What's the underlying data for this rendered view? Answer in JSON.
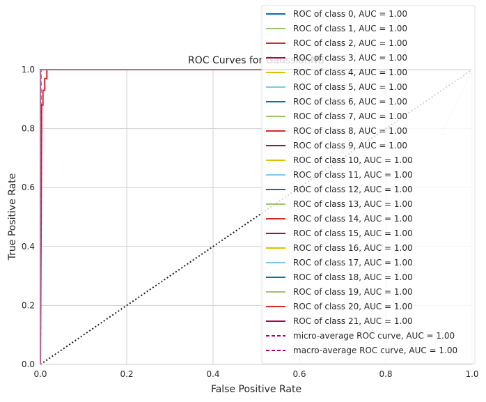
{
  "chart_data": {
    "type": "line",
    "title": "ROC Curves for GaussianNB",
    "xlabel": "False Positive Rate",
    "ylabel": "True Positive Rate",
    "xlim": [
      0,
      1
    ],
    "ylim": [
      0,
      1
    ],
    "xticks": [
      "0.0",
      "0.2",
      "0.4",
      "0.6",
      "0.8",
      "1.0"
    ],
    "yticks": [
      "0.0",
      "0.2",
      "0.4",
      "0.6",
      "0.8",
      "1.0"
    ],
    "grid": true,
    "legend_position": "upper-right",
    "series": [
      {
        "name": "ROC of class 0, AUC = 1.00",
        "color": "#0072B2",
        "style": "solid",
        "x": [
          0,
          0,
          1
        ],
        "y": [
          0,
          1,
          1
        ]
      },
      {
        "name": "ROC of class 1, AUC = 1.00",
        "color": "#9BC46B",
        "style": "solid",
        "x": [
          0,
          0,
          1
        ],
        "y": [
          0,
          1,
          1
        ]
      },
      {
        "name": "ROC of class 2, AUC = 1.00",
        "color": "#D62728",
        "style": "solid",
        "x": [
          0,
          0,
          1
        ],
        "y": [
          0,
          1,
          1
        ]
      },
      {
        "name": "ROC of class 3, AUC = 1.00",
        "color": "#B5005B",
        "style": "solid",
        "x": [
          0,
          0,
          1
        ],
        "y": [
          0,
          1,
          1
        ]
      },
      {
        "name": "ROC of class 4, AUC = 1.00",
        "color": "#D9C200",
        "style": "solid",
        "x": [
          0,
          0,
          1
        ],
        "y": [
          0,
          1,
          1
        ]
      },
      {
        "name": "ROC of class 5, AUC = 1.00",
        "color": "#7EC8E3",
        "style": "solid",
        "x": [
          0,
          0,
          1
        ],
        "y": [
          0,
          1,
          1
        ]
      },
      {
        "name": "ROC of class 6, AUC = 1.00",
        "color": "#0072B2",
        "style": "solid",
        "x": [
          0,
          0,
          1
        ],
        "y": [
          0,
          1,
          1
        ]
      },
      {
        "name": "ROC of class 7, AUC = 1.00",
        "color": "#9BC46B",
        "style": "solid",
        "x": [
          0,
          0,
          1
        ],
        "y": [
          0,
          1,
          1
        ]
      },
      {
        "name": "ROC of class 8, AUC = 1.00",
        "color": "#D62728",
        "style": "solid",
        "x": [
          0,
          0,
          1
        ],
        "y": [
          0,
          1,
          1
        ]
      },
      {
        "name": "ROC of class 9, AUC = 1.00",
        "color": "#B5005B",
        "style": "solid",
        "x": [
          0,
          0,
          1
        ],
        "y": [
          0,
          1,
          1
        ]
      },
      {
        "name": "ROC of class 10, AUC = 1.00",
        "color": "#D9C200",
        "style": "solid",
        "x": [
          0,
          0,
          1
        ],
        "y": [
          0,
          1,
          1
        ]
      },
      {
        "name": "ROC of class 11, AUC = 1.00",
        "color": "#7EC8E3",
        "style": "solid",
        "x": [
          0,
          0,
          1
        ],
        "y": [
          0,
          1,
          1
        ]
      },
      {
        "name": "ROC of class 12, AUC = 1.00",
        "color": "#0072B2",
        "style": "solid",
        "x": [
          0,
          0,
          1
        ],
        "y": [
          0,
          1,
          1
        ]
      },
      {
        "name": "ROC of class 13, AUC = 1.00",
        "color": "#9BC46B",
        "style": "solid",
        "x": [
          0,
          0,
          1
        ],
        "y": [
          0,
          1,
          1
        ]
      },
      {
        "name": "ROC of class 14, AUC = 1.00",
        "color": "#D62728",
        "style": "solid",
        "x": [
          0,
          0,
          1
        ],
        "y": [
          0,
          1,
          1
        ]
      },
      {
        "name": "ROC of class 15, AUC = 1.00",
        "color": "#B5005B",
        "style": "solid",
        "x": [
          0,
          0,
          1
        ],
        "y": [
          0,
          1,
          1
        ]
      },
      {
        "name": "ROC of class 16, AUC = 1.00",
        "color": "#D9C200",
        "style": "solid",
        "x": [
          0,
          0,
          1
        ],
        "y": [
          0,
          1,
          1
        ]
      },
      {
        "name": "ROC of class 17, AUC = 1.00",
        "color": "#7EC8E3",
        "style": "solid",
        "x": [
          0,
          0,
          1
        ],
        "y": [
          0,
          1,
          1
        ]
      },
      {
        "name": "ROC of class 18, AUC = 1.00",
        "color": "#0072B2",
        "style": "solid",
        "x": [
          0,
          0,
          1
        ],
        "y": [
          0,
          1,
          1
        ]
      },
      {
        "name": "ROC of class 19, AUC = 1.00",
        "color": "#9BC46B",
        "style": "solid",
        "x": [
          0,
          0,
          1
        ],
        "y": [
          0,
          1,
          1
        ]
      },
      {
        "name": "ROC of class 20, AUC = 1.00",
        "color": "#D62728",
        "style": "solid",
        "x": [
          0,
          0.003,
          0.003,
          0.006,
          0.006,
          0.01,
          0.01,
          0.015,
          0.015,
          1
        ],
        "y": [
          0,
          0.84,
          0.88,
          0.88,
          0.93,
          0.93,
          0.97,
          0.97,
          1,
          1
        ]
      },
      {
        "name": "ROC of class 21, AUC = 1.00",
        "color": "#B5005B",
        "style": "solid",
        "x": [
          0,
          0,
          1
        ],
        "y": [
          0,
          1,
          1
        ]
      },
      {
        "name": "micro-average ROC curve, AUC = 1.00",
        "color": "#B5005B",
        "style": "dashed",
        "x": [
          0,
          0.001,
          1
        ],
        "y": [
          0,
          1,
          1
        ]
      },
      {
        "name": "macro-average ROC curve, AUC = 1.00",
        "color": "#B5005B",
        "style": "dashed",
        "x": [
          0,
          0.001,
          1
        ],
        "y": [
          0,
          1,
          1
        ]
      }
    ],
    "diagonal": {
      "x": [
        0,
        1
      ],
      "y": [
        0,
        1
      ],
      "color": "#1a1a1a",
      "style": "dotted"
    },
    "end_marker": {
      "x": 1,
      "y": 1,
      "color": "#cccccc",
      "style": "dotted"
    }
  }
}
